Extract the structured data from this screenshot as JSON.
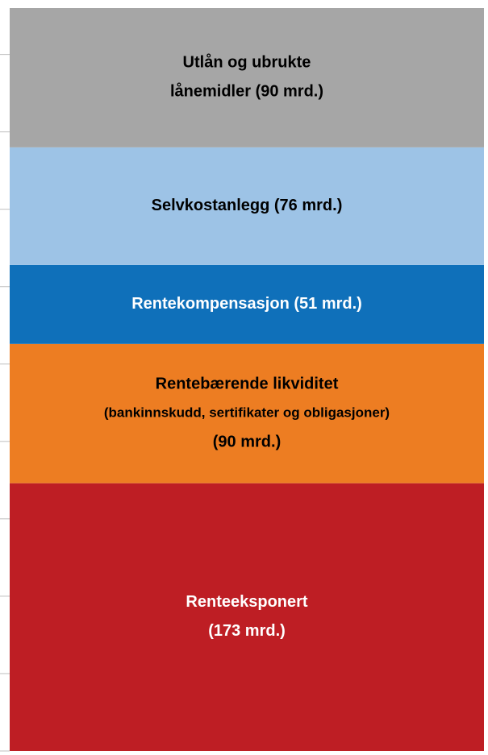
{
  "chart_data": {
    "type": "stacked_bar",
    "categories": [
      null
    ],
    "ylim": [
      0,
      480
    ],
    "yticks": [
      0,
      50,
      100,
      150,
      200,
      250,
      300,
      350,
      400,
      450
    ],
    "series": [
      {
        "label": [
          "Renteeksponert",
          "(173 mrd.)"
        ],
        "color": "#be1e24",
        "label_color": "#ffffff",
        "values": [
          173
        ]
      },
      {
        "label": [
          "Rentebærende likviditet",
          "(bankinnskudd, sertifikater og obligasjoner)",
          "(90 mrd.)"
        ],
        "color": "#ed7d22",
        "label_color": "#000000",
        "values": [
          90
        ]
      },
      {
        "label": [
          "Rentekompensasjon (51 mrd.)"
        ],
        "color": "#0f70ba",
        "label_color": "#ffffff",
        "values": [
          51
        ]
      },
      {
        "label": [
          "Selvkostanlegg (76 mrd.)"
        ],
        "color": "#9dc3e6",
        "label_color": "#000000",
        "values": [
          76
        ]
      },
      {
        "label": [
          "Utlån og ubrukte",
          "lånemidler (90 mrd.)"
        ],
        "color": "#a6a6a6",
        "label_color": "#000000",
        "values": [
          90
        ]
      }
    ]
  }
}
